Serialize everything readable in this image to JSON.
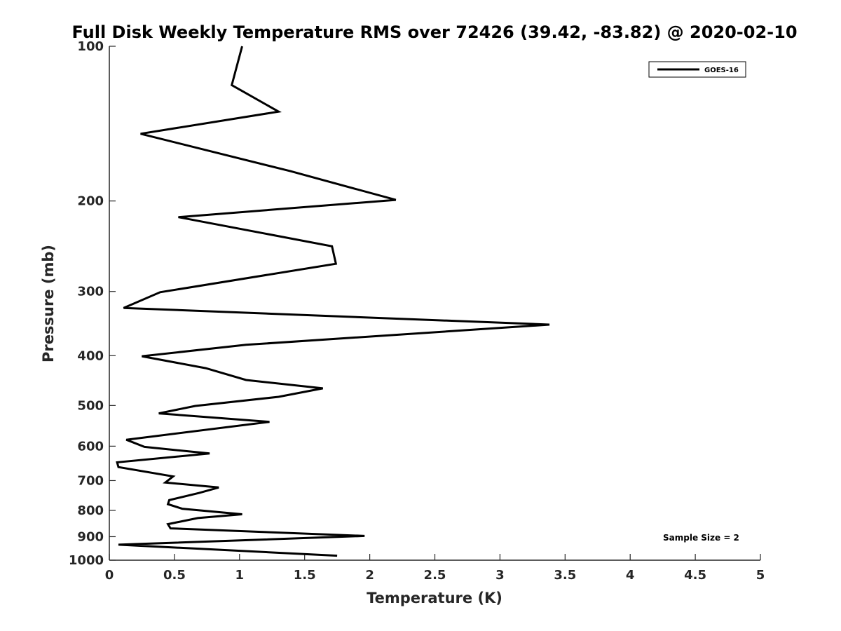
{
  "chart_data": {
    "type": "line",
    "title": "Full Disk Weekly Temperature RMS over 72426 (39.42, -83.82) @ 2020-02-10",
    "xlabel": "Temperature (K)",
    "ylabel": "Pressure (mb)",
    "xlim": [
      0,
      5
    ],
    "ylim": [
      100,
      1000
    ],
    "yscale": "log",
    "yreversed": true,
    "grid": false,
    "legend_position": "top-right",
    "x_ticks": [
      {
        "value": 0,
        "label": "0"
      },
      {
        "value": 0.5,
        "label": "0.5"
      },
      {
        "value": 1,
        "label": "1"
      },
      {
        "value": 1.5,
        "label": "1.5"
      },
      {
        "value": 2,
        "label": "2"
      },
      {
        "value": 2.5,
        "label": "2.5"
      },
      {
        "value": 3,
        "label": "3"
      },
      {
        "value": 3.5,
        "label": "3.5"
      },
      {
        "value": 4,
        "label": "4"
      },
      {
        "value": 4.5,
        "label": "4.5"
      },
      {
        "value": 5,
        "label": "5"
      }
    ],
    "y_ticks": [
      {
        "value": 100,
        "label": "100"
      },
      {
        "value": 200,
        "label": "200"
      },
      {
        "value": 300,
        "label": "300"
      },
      {
        "value": 400,
        "label": "400"
      },
      {
        "value": 500,
        "label": "500"
      },
      {
        "value": 600,
        "label": "600"
      },
      {
        "value": 700,
        "label": "700"
      },
      {
        "value": 800,
        "label": "800"
      },
      {
        "value": 900,
        "label": "900"
      },
      {
        "value": 1000,
        "label": "1000"
      }
    ],
    "series": [
      {
        "name": "GOES-16",
        "color": "#000000",
        "points": [
          {
            "x": 1.02,
            "p": 100
          },
          {
            "x": 0.94,
            "p": 119
          },
          {
            "x": 1.3,
            "p": 134
          },
          {
            "x": 0.24,
            "p": 148
          },
          {
            "x": 1.39,
            "p": 175
          },
          {
            "x": 2.2,
            "p": 199
          },
          {
            "x": 0.53,
            "p": 215
          },
          {
            "x": 1.71,
            "p": 245
          },
          {
            "x": 1.74,
            "p": 265
          },
          {
            "x": 0.39,
            "p": 301
          },
          {
            "x": 0.11,
            "p": 323
          },
          {
            "x": 3.38,
            "p": 348
          },
          {
            "x": 1.05,
            "p": 381
          },
          {
            "x": 0.25,
            "p": 401
          },
          {
            "x": 0.74,
            "p": 423
          },
          {
            "x": 1.05,
            "p": 446
          },
          {
            "x": 1.64,
            "p": 463
          },
          {
            "x": 1.3,
            "p": 481
          },
          {
            "x": 0.66,
            "p": 501
          },
          {
            "x": 0.38,
            "p": 518
          },
          {
            "x": 1.23,
            "p": 538
          },
          {
            "x": 0.13,
            "p": 583
          },
          {
            "x": 0.27,
            "p": 602
          },
          {
            "x": 0.77,
            "p": 620
          },
          {
            "x": 0.06,
            "p": 645
          },
          {
            "x": 0.07,
            "p": 659
          },
          {
            "x": 0.49,
            "p": 687
          },
          {
            "x": 0.43,
            "p": 706
          },
          {
            "x": 0.84,
            "p": 722
          },
          {
            "x": 0.69,
            "p": 740
          },
          {
            "x": 0.46,
            "p": 764
          },
          {
            "x": 0.45,
            "p": 778
          },
          {
            "x": 0.56,
            "p": 794
          },
          {
            "x": 1.02,
            "p": 814
          },
          {
            "x": 0.68,
            "p": 828
          },
          {
            "x": 0.45,
            "p": 851
          },
          {
            "x": 0.47,
            "p": 867
          },
          {
            "x": 1.96,
            "p": 897
          },
          {
            "x": 0.07,
            "p": 933
          },
          {
            "x": 1.75,
            "p": 980
          }
        ]
      }
    ],
    "annotations": [
      {
        "text": "Sample Size = 2"
      }
    ]
  }
}
